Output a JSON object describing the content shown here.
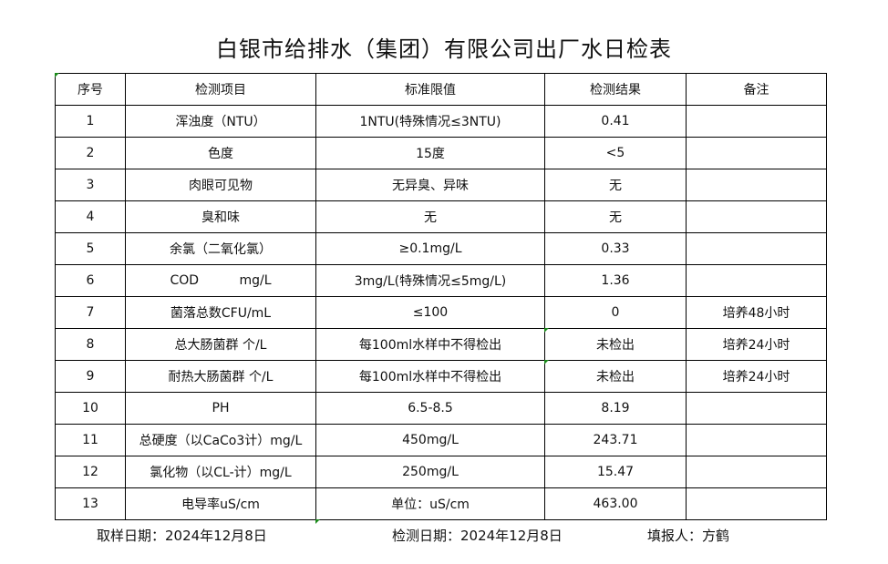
{
  "title": "白银市给排水（集团）有限公司出厂水日检表",
  "headers": [
    "序号",
    "检测项目",
    "标准限值",
    "检测结果",
    "备注"
  ],
  "rows": [
    [
      "1",
      "浑浊度（NTU）",
      "1NTU(特殊情况≤3NTU)",
      "0.41",
      ""
    ],
    [
      "2",
      "色度",
      "15度",
      "<5",
      ""
    ],
    [
      "3",
      "肉眼可见物",
      "无异臭、异味",
      "无",
      ""
    ],
    [
      "4",
      "臭和味",
      "无",
      "无",
      ""
    ],
    [
      "5",
      "余氯（二氧化氯）",
      "≥0.1mg/L",
      "0.33",
      ""
    ],
    [
      "6",
      "COD          mg/L",
      "3mg/L(特殊情况≤5mg/L)",
      "1.36",
      ""
    ],
    [
      "7",
      "菌落总数CFU/mL",
      "≤100",
      "0",
      "培养48小时"
    ],
    [
      "8",
      "总大肠菌群 个/L",
      "每100ml水样中不得检出",
      "未检出",
      "培养24小时"
    ],
    [
      "9",
      "耐热大肠菌群 个/L",
      "每100ml水样中不得检出",
      "未检出",
      "培养24小时"
    ],
    [
      "10",
      "PH",
      "6.5-8.5",
      "8.19",
      ""
    ],
    [
      "11",
      "总硬度（以CaCo3计）mg/L",
      "450mg/L",
      "243.71",
      ""
    ],
    [
      "12",
      "氯化物（以CL-计）mg/L",
      "250mg/L",
      "15.47",
      ""
    ],
    [
      "13",
      "电导率uS/cm",
      "单位：uS/cm",
      "463.00",
      ""
    ]
  ],
  "footer": {
    "sample_date": "取样日期：2024年12月8日",
    "test_date": "检测日期：2024年12月8日",
    "reporter": "填报人：方鹤"
  }
}
